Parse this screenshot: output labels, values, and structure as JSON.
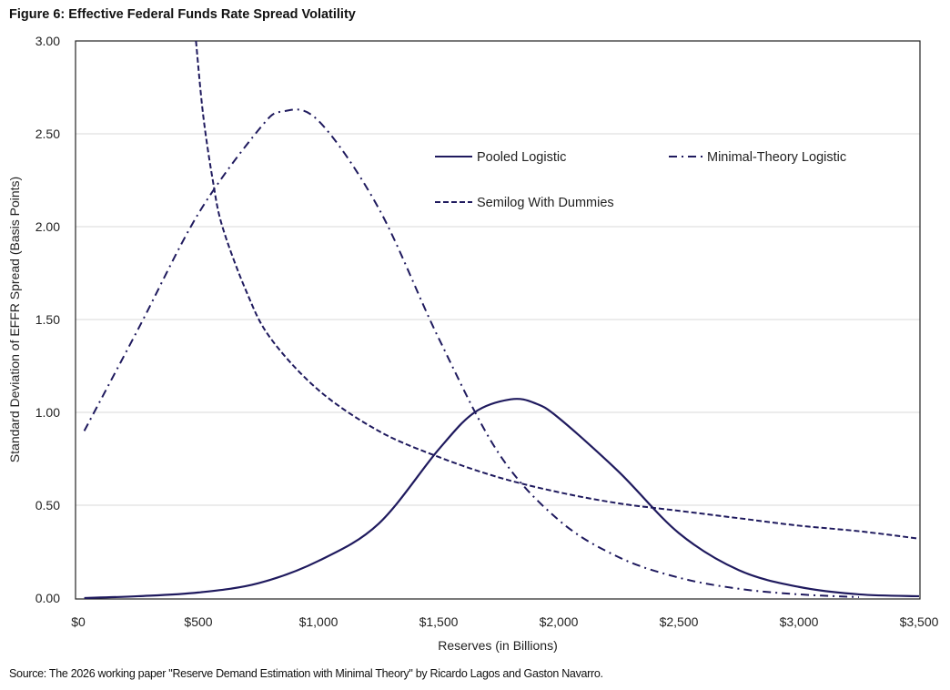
{
  "chart_data": {
    "type": "line",
    "title": "Figure 6: Effective Federal Funds Rate Spread Volatility",
    "xlabel": "Reserves (in Billions)",
    "ylabel": "Standard Deviation of EFFR Spread (Basis Points)",
    "xlim": [
      0,
      3500
    ],
    "ylim": [
      0,
      3
    ],
    "x_ticks": [
      "$0",
      "$500",
      "$1,000",
      "$1,500",
      "$2,000",
      "$2,500",
      "$3,000",
      "$3,500"
    ],
    "y_ticks": [
      "0.00",
      "0.50",
      "1.00",
      "1.50",
      "2.00",
      "2.50",
      "3.00"
    ],
    "grid": "horizontal",
    "legend": "top-right",
    "color": "#1f1a5e",
    "series": [
      {
        "name": "Pooled Logistic",
        "style": "solid",
        "x": [
          25,
          250,
          500,
          750,
          1000,
          1250,
          1500,
          1650,
          1800,
          1900,
          2000,
          2250,
          2500,
          2750,
          3000,
          3250,
          3500
        ],
        "y": [
          0.0,
          0.01,
          0.03,
          0.08,
          0.2,
          0.4,
          0.8,
          1.0,
          1.07,
          1.05,
          0.97,
          0.68,
          0.35,
          0.15,
          0.06,
          0.02,
          0.01
        ]
      },
      {
        "name": "Minimal-Theory Logistic",
        "style": "dash-dot",
        "x": [
          25,
          250,
          500,
          750,
          850,
          1000,
          1250,
          1500,
          1750,
          2000,
          2250,
          2500,
          2750,
          3000,
          3250
        ],
        "y": [
          0.9,
          1.45,
          2.07,
          2.52,
          2.62,
          2.57,
          2.1,
          1.4,
          0.78,
          0.42,
          0.22,
          0.11,
          0.05,
          0.02,
          0.005
        ]
      },
      {
        "name": "Semilog With Dummies",
        "style": "dashed",
        "x": [
          490,
          520,
          560,
          600,
          700,
          800,
          1000,
          1250,
          1500,
          1750,
          2000,
          2250,
          2500,
          2750,
          3000,
          3250,
          3500
        ],
        "y": [
          3.0,
          2.6,
          2.25,
          2.0,
          1.65,
          1.4,
          1.12,
          0.9,
          0.76,
          0.65,
          0.57,
          0.51,
          0.47,
          0.43,
          0.39,
          0.36,
          0.32
        ]
      }
    ]
  },
  "source": "Source: The 2026 working paper \"Reserve Demand Estimation with Minimal Theory\" by Ricardo Lagos and Gaston Navarro."
}
